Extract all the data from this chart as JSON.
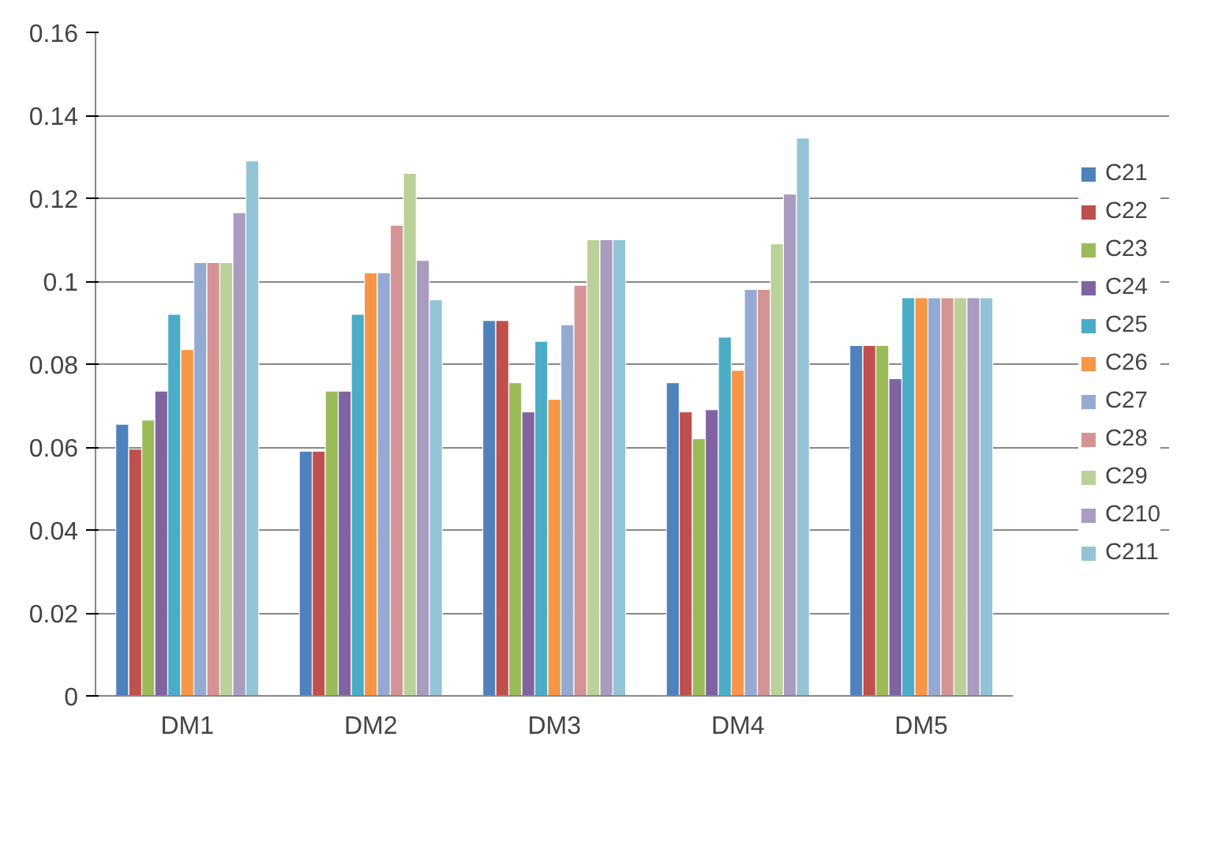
{
  "chart_data": {
    "type": "bar",
    "categories": [
      "DM1",
      "DM2",
      "DM3",
      "DM4",
      "DM5"
    ],
    "ylim": [
      0,
      0.16
    ],
    "yticks": [
      {
        "value": 0,
        "label": "0"
      },
      {
        "value": 0.02,
        "label": "0.02"
      },
      {
        "value": 0.04,
        "label": "0.04"
      },
      {
        "value": 0.06,
        "label": "0.06"
      },
      {
        "value": 0.08,
        "label": "0.08"
      },
      {
        "value": 0.1,
        "label": "0.1"
      },
      {
        "value": 0.12,
        "label": "0.12"
      },
      {
        "value": 0.14,
        "label": "0.14"
      },
      {
        "value": 0.16,
        "label": "0.16"
      }
    ],
    "grid": "y",
    "legend": "right",
    "series": [
      {
        "name": "C21",
        "color": "#4f81bd",
        "values": [
          0.0655,
          0.059,
          0.0905,
          0.0755,
          0.0845
        ]
      },
      {
        "name": "C22",
        "color": "#c0504d",
        "values": [
          0.0595,
          0.059,
          0.0905,
          0.0685,
          0.0845
        ]
      },
      {
        "name": "C23",
        "color": "#9bbb59",
        "values": [
          0.0665,
          0.0735,
          0.0755,
          0.062,
          0.0845
        ]
      },
      {
        "name": "C24",
        "color": "#8064a2",
        "values": [
          0.0735,
          0.0735,
          0.0685,
          0.069,
          0.0765
        ]
      },
      {
        "name": "C25",
        "color": "#4bacc6",
        "values": [
          0.092,
          0.092,
          0.0855,
          0.0865,
          0.096
        ]
      },
      {
        "name": "C26",
        "color": "#f79646",
        "values": [
          0.0835,
          0.102,
          0.0715,
          0.0785,
          0.096
        ]
      },
      {
        "name": "C27",
        "color": "#95aad3",
        "values": [
          0.1045,
          0.102,
          0.0895,
          0.098,
          0.096
        ]
      },
      {
        "name": "C28",
        "color": "#d49494",
        "values": [
          0.1045,
          0.1135,
          0.099,
          0.098,
          0.096
        ]
      },
      {
        "name": "C29",
        "color": "#bbd19a",
        "values": [
          0.1045,
          0.126,
          0.11,
          0.109,
          0.096
        ]
      },
      {
        "name": "C210",
        "color": "#aa9bc0",
        "values": [
          0.1165,
          0.105,
          0.11,
          0.121,
          0.096
        ]
      },
      {
        "name": "C211",
        "color": "#93c4d6",
        "values": [
          0.129,
          0.0955,
          0.11,
          0.1345,
          0.096
        ]
      }
    ]
  }
}
